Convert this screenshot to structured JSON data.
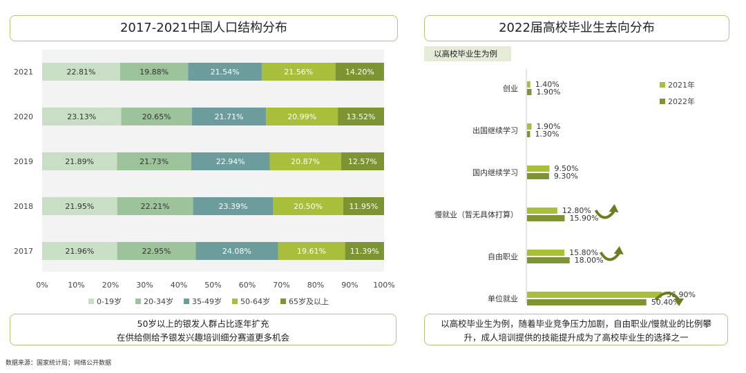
{
  "left": {
    "title": "2017-2021中国人口结构分布",
    "note_lines": [
      "50岁以上的银发人群占比逐年扩充",
      "在供给侧给予银发兴趣培训细分赛道更多机会"
    ]
  },
  "right": {
    "title": "2022届高校毕业生去向分布",
    "tag": "以高校毕业生为例",
    "note_lines": [
      "以高校毕业生为例，随着毕业竞争压力加剧，自由职业/慢就业的比例攀",
      "升，成人培训提供的技能提升成为了高校毕业生的选择之一"
    ]
  },
  "source": "数据来源：国家统计局；网络公开数据",
  "chart_data": [
    {
      "type": "bar",
      "orientation": "horizontal",
      "stacked": true,
      "title": "2017-2021中国人口结构分布",
      "categories": [
        "2021",
        "2020",
        "2019",
        "2018",
        "2017"
      ],
      "series": [
        {
          "name": "0-19岁",
          "color": "#c9dfc5",
          "values": [
            22.81,
            23.13,
            21.89,
            21.95,
            21.96
          ]
        },
        {
          "name": "20-34岁",
          "color": "#9cc39a",
          "values": [
            19.88,
            20.65,
            21.73,
            22.21,
            22.95
          ]
        },
        {
          "name": "35-49岁",
          "color": "#6c9c9c",
          "values": [
            21.54,
            21.71,
            22.94,
            23.39,
            24.08
          ]
        },
        {
          "name": "50-64岁",
          "color": "#a9bf3b",
          "values": [
            21.56,
            20.99,
            20.87,
            20.5,
            19.61
          ]
        },
        {
          "name": "65岁及以上",
          "color": "#7d9433",
          "values": [
            14.2,
            13.52,
            12.57,
            11.95,
            11.39
          ]
        }
      ],
      "xticks": [
        "0%",
        "10%",
        "20%",
        "30%",
        "40%",
        "50%",
        "60%",
        "70%",
        "80%",
        "90%",
        "100%"
      ],
      "xlim": [
        0,
        100
      ],
      "legend": "bottom",
      "grid": false
    },
    {
      "type": "bar",
      "orientation": "horizontal",
      "title": "2022届高校毕业生去向分布",
      "categories": [
        "创业",
        "出国继续学习",
        "国内继续学习",
        "慢就业（暂无具体打算）",
        "自由职业",
        "单位就业"
      ],
      "series": [
        {
          "name": "2021年",
          "color": "#a9bf3b",
          "values": [
            1.4,
            1.9,
            9.5,
            12.8,
            15.8,
            56.9
          ]
        },
        {
          "name": "2022年",
          "color": "#7d9433",
          "values": [
            1.9,
            1.3,
            9.3,
            15.9,
            18.0,
            50.4
          ]
        }
      ],
      "legend": "top-right",
      "grid": false,
      "annotations": [
        {
          "category": "慢就业（暂无具体打算）",
          "icon": "curved-arrow-up"
        },
        {
          "category": "自由职业",
          "icon": "curved-arrow-up"
        },
        {
          "category": "单位就业",
          "icon": "curved-arrow-down"
        }
      ]
    }
  ]
}
